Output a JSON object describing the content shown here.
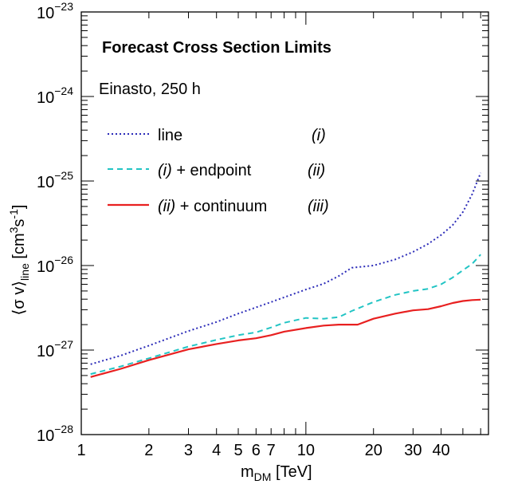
{
  "chart_data": {
    "type": "line",
    "title": "Forecast Cross Section Limits",
    "subtitle": "Einasto, 250 h",
    "xlabel": {
      "main": "m",
      "sub": "DM",
      "unit": " [TeV]"
    },
    "ylabel": {
      "open": "⟨σ v⟩",
      "sub": "line",
      "unit_a": " [cm",
      "unit_sup": "3",
      "unit_b": "s",
      "unit_sup2": "-1",
      "unit_c": "]"
    },
    "xscale": "log",
    "yscale": "log",
    "xlim": [
      1,
      65
    ],
    "ylim": [
      1e-28,
      1e-23
    ],
    "grid": false,
    "legend_position": "upper-left",
    "x_ticks": [
      {
        "value": 1,
        "label": "1"
      },
      {
        "value": 2,
        "label": "2"
      },
      {
        "value": 3,
        "label": "3"
      },
      {
        "value": 4,
        "label": "4"
      },
      {
        "value": 5,
        "label": "5"
      },
      {
        "value": 6,
        "label": "6"
      },
      {
        "value": 7,
        "label": "7"
      },
      {
        "value": 10,
        "label": "10"
      },
      {
        "value": 20,
        "label": "20"
      },
      {
        "value": 30,
        "label": "30"
      },
      {
        "value": 40,
        "label": "40"
      }
    ],
    "y_ticks": [
      {
        "value": 1e-28,
        "base": "10",
        "exp": "−28"
      },
      {
        "value": 1e-27,
        "base": "10",
        "exp": "−27"
      },
      {
        "value": 1e-26,
        "base": "10",
        "exp": "−26"
      },
      {
        "value": 1e-25,
        "base": "10",
        "exp": "−25"
      },
      {
        "value": 1e-24,
        "base": "10",
        "exp": "−24"
      },
      {
        "value": 1e-23,
        "base": "10",
        "exp": "−23"
      }
    ],
    "series": [
      {
        "name": "line",
        "tag": "(i)",
        "color": "#2b2bb8",
        "style": "dotted",
        "x": [
          1.1,
          1.5,
          2,
          3,
          4,
          5,
          6,
          7,
          8,
          10,
          12,
          14,
          16,
          20,
          25,
          30,
          35,
          40,
          45,
          50,
          55,
          60
        ],
        "y": [
          6.8e-28,
          8.6e-28,
          1.13e-27,
          1.68e-27,
          2.15e-27,
          2.7e-27,
          3.2e-27,
          3.7e-27,
          4.2e-27,
          5.2e-27,
          6.1e-27,
          7.5e-27,
          9.4e-27,
          1e-26,
          1.18e-26,
          1.45e-26,
          1.8e-26,
          2.3e-26,
          3e-26,
          4.3e-26,
          7e-26,
          1.25e-25
        ]
      },
      {
        "name": "(i) + endpoint",
        "tag": "(ii)",
        "color": "#22c4c4",
        "style": "dashed",
        "x": [
          1.1,
          1.5,
          2,
          3,
          4,
          5,
          6,
          7,
          8,
          10,
          12,
          14,
          16,
          20,
          25,
          30,
          35,
          40,
          45,
          50,
          55,
          60
        ],
        "y": [
          5.2e-28,
          6.4e-28,
          8e-28,
          1.1e-27,
          1.32e-27,
          1.5e-27,
          1.62e-27,
          1.85e-27,
          2.1e-27,
          2.4e-27,
          2.35e-27,
          2.45e-27,
          2.9e-27,
          3.7e-27,
          4.5e-27,
          5e-27,
          5.3e-27,
          6e-27,
          7.2e-27,
          8.8e-27,
          1.05e-26,
          1.35e-26
        ]
      },
      {
        "name": "(ii) + continuum",
        "tag": "(iii)",
        "color": "#e82020",
        "style": "solid",
        "x": [
          1.1,
          1.5,
          2,
          3,
          4,
          5,
          6,
          7,
          8,
          10,
          12,
          14,
          16,
          17,
          20,
          25,
          30,
          35,
          40,
          45,
          50,
          55,
          60
        ],
        "y": [
          4.8e-28,
          6e-28,
          7.6e-28,
          1.02e-27,
          1.18e-27,
          1.3e-27,
          1.38e-27,
          1.5e-27,
          1.65e-27,
          1.82e-27,
          1.95e-27,
          2e-27,
          2e-27,
          2e-27,
          2.35e-27,
          2.7e-27,
          2.95e-27,
          3.05e-27,
          3.3e-27,
          3.6e-27,
          3.8e-27,
          3.9e-27,
          3.95e-27
        ]
      }
    ]
  }
}
